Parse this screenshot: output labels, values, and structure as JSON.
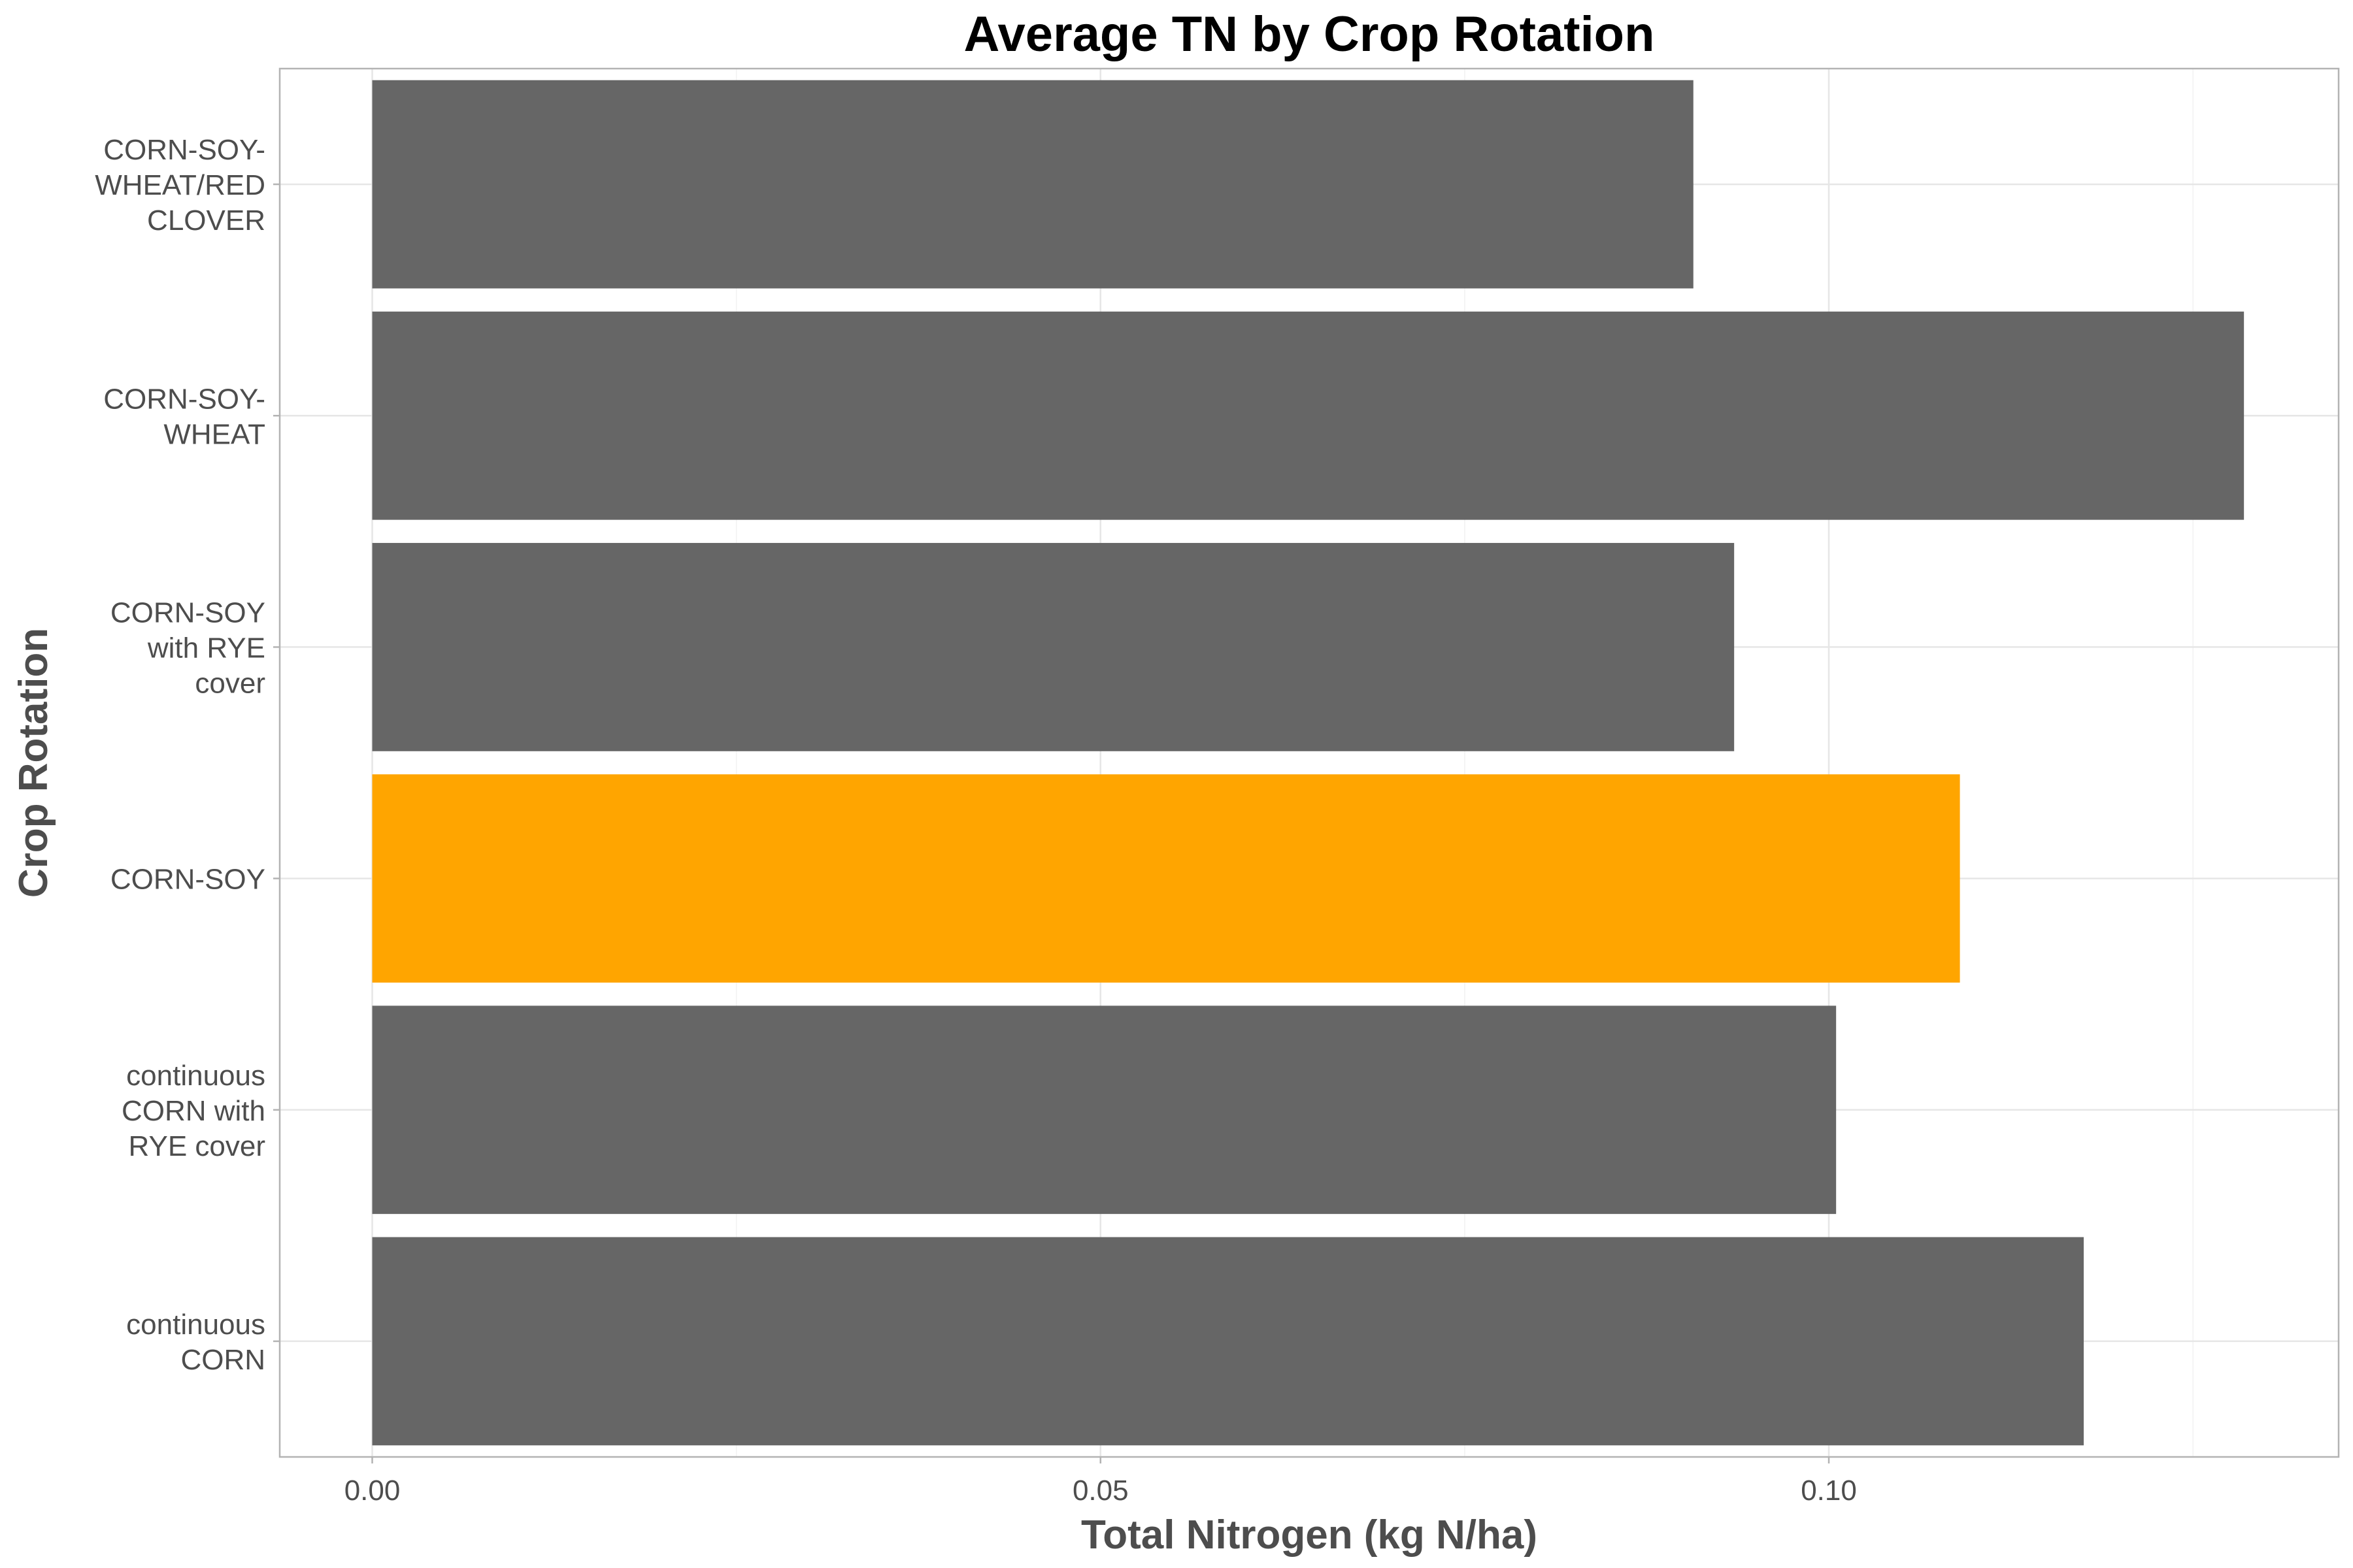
{
  "chart_data": {
    "type": "bar",
    "orientation": "horizontal",
    "title": "Average TN by Crop Rotation",
    "xlabel": "Total Nitrogen (kg N/ha)",
    "ylabel": "Crop Rotation",
    "categories": [
      "continuous CORN",
      "continuous CORN with RYE cover",
      "CORN-SOY",
      "CORN-SOY with RYE cover",
      "CORN-SOY-WHEAT",
      "CORN-SOY-WHEAT/RED CLOVER"
    ],
    "category_label_lines": [
      [
        "continuous",
        "CORN"
      ],
      [
        "continuous",
        "CORN with",
        "RYE cover"
      ],
      [
        "CORN-SOY"
      ],
      [
        "CORN-SOY",
        "with RYE",
        "cover"
      ],
      [
        "CORN-SOY-",
        "WHEAT"
      ],
      [
        "CORN-SOY-",
        "WHEAT/RED",
        "CLOVER"
      ]
    ],
    "values": [
      0.1175,
      0.1005,
      0.109,
      0.0935,
      0.1285,
      0.0907
    ],
    "bar_colors": [
      "#666666",
      "#666666",
      "#FFA500",
      "#666666",
      "#666666",
      "#666666"
    ],
    "highlight_category": "CORN-SOY",
    "xlim": [
      -0.00635,
      0.135
    ],
    "xticks": [
      0.0,
      0.05,
      0.1
    ],
    "xtick_labels": [
      "0.00",
      "0.05",
      "0.10"
    ],
    "grid": true,
    "legend": "none"
  }
}
